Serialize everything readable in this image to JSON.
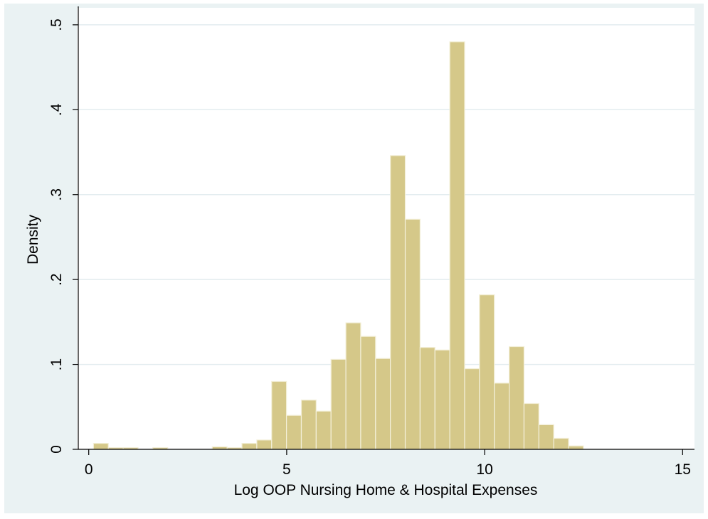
{
  "chart_data": {
    "type": "bar",
    "xlabel": "Log OOP Nursing Home & Hospital Expenses",
    "ylabel": "Density",
    "xlim": [
      -0.3,
      15.3
    ],
    "ylim": [
      0,
      0.52
    ],
    "x_ticks": [
      {
        "value": 0,
        "label": "0"
      },
      {
        "value": 5,
        "label": "5"
      },
      {
        "value": 10,
        "label": "10"
      },
      {
        "value": 15,
        "label": "15"
      }
    ],
    "y_ticks": [
      {
        "value": 0,
        "label": "0"
      },
      {
        "value": 0.1,
        "label": ".1"
      },
      {
        "value": 0.2,
        "label": ".2"
      },
      {
        "value": 0.3,
        "label": ".3"
      },
      {
        "value": 0.4,
        "label": ".4"
      },
      {
        "value": 0.5,
        "label": ".5"
      }
    ],
    "grid": true,
    "bin_width": 0.375,
    "bins": [
      {
        "x0": 0.12,
        "density": 0.007
      },
      {
        "x0": 0.495,
        "density": 0.002
      },
      {
        "x0": 0.87,
        "density": 0.002
      },
      {
        "x0": 1.62,
        "density": 0.002
      },
      {
        "x0": 3.12,
        "density": 0.003
      },
      {
        "x0": 3.495,
        "density": 0.002
      },
      {
        "x0": 3.87,
        "density": 0.007
      },
      {
        "x0": 4.245,
        "density": 0.011
      },
      {
        "x0": 4.62,
        "density": 0.08
      },
      {
        "x0": 4.995,
        "density": 0.04
      },
      {
        "x0": 5.37,
        "density": 0.058
      },
      {
        "x0": 5.745,
        "density": 0.045
      },
      {
        "x0": 6.12,
        "density": 0.106
      },
      {
        "x0": 6.495,
        "density": 0.149
      },
      {
        "x0": 6.87,
        "density": 0.133
      },
      {
        "x0": 7.245,
        "density": 0.107
      },
      {
        "x0": 7.62,
        "density": 0.346
      },
      {
        "x0": 7.995,
        "density": 0.271
      },
      {
        "x0": 8.37,
        "density": 0.12
      },
      {
        "x0": 8.745,
        "density": 0.117
      },
      {
        "x0": 9.12,
        "density": 0.48
      },
      {
        "x0": 9.495,
        "density": 0.095
      },
      {
        "x0": 9.87,
        "density": 0.182
      },
      {
        "x0": 10.245,
        "density": 0.078
      },
      {
        "x0": 10.62,
        "density": 0.121
      },
      {
        "x0": 10.995,
        "density": 0.054
      },
      {
        "x0": 11.37,
        "density": 0.029
      },
      {
        "x0": 11.745,
        "density": 0.013
      },
      {
        "x0": 12.12,
        "density": 0.004
      }
    ],
    "colors": {
      "outer_background": "#eaf2f3",
      "plot_background": "#ffffff",
      "bar_fill": "#d5c889",
      "bar_edge": "#f3efd8",
      "grid": "#e3ecef",
      "axis": "#000000"
    }
  }
}
